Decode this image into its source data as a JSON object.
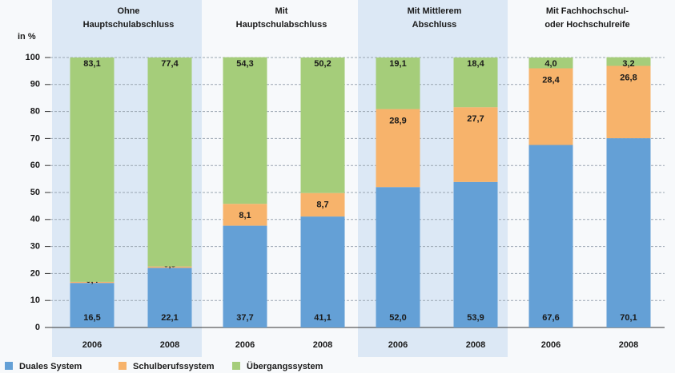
{
  "chart_data": {
    "type": "stacked_bar",
    "y_label": "in %",
    "groups": [
      {
        "label": [
          "Ohne",
          "Hauptschulabschluss"
        ]
      },
      {
        "label": [
          "Mit",
          "Hauptschulabschluss"
        ]
      },
      {
        "label": [
          "Mit Mittlerem",
          "Abschluss"
        ]
      },
      {
        "label": [
          "Mit Fachhochschul-",
          "oder Hochschulreife"
        ]
      }
    ],
    "categories": [
      "2006",
      "2008",
      "2006",
      "2008",
      "2006",
      "2008",
      "2006",
      "2008"
    ],
    "series": [
      {
        "name": "Duales System",
        "color": "#64a0d6",
        "values": [
          16.5,
          22.1,
          37.7,
          41.1,
          52.0,
          53.9,
          67.6,
          70.1
        ],
        "value_labels": [
          "16,5",
          "22,1",
          "37,7",
          "41,1",
          "52,0",
          "53,9",
          "67,6",
          "70,1"
        ]
      },
      {
        "name": "Schulberufssystem",
        "color": "#f7b36b",
        "values": [
          0.4,
          0.5,
          8.1,
          8.7,
          28.9,
          27.7,
          28.4,
          26.8
        ],
        "value_labels": [
          "0,4",
          "0,5",
          "8,1",
          "8,7",
          "28,9",
          "27,7",
          "28,4",
          "26,8"
        ]
      },
      {
        "name": "Übergangssystem",
        "color": "#a5cd7a",
        "values": [
          83.1,
          77.4,
          54.3,
          50.2,
          19.1,
          18.4,
          4.0,
          3.2
        ],
        "value_labels": [
          "83,1",
          "77,4",
          "54,3",
          "50,2",
          "19,1",
          "18,4",
          "4,0",
          "3,2"
        ]
      }
    ],
    "ylim": [
      0,
      100
    ],
    "yticks": [
      0,
      10,
      20,
      30,
      40,
      50,
      60,
      70,
      80,
      90,
      100
    ],
    "grid": true,
    "legend": "bottom"
  }
}
